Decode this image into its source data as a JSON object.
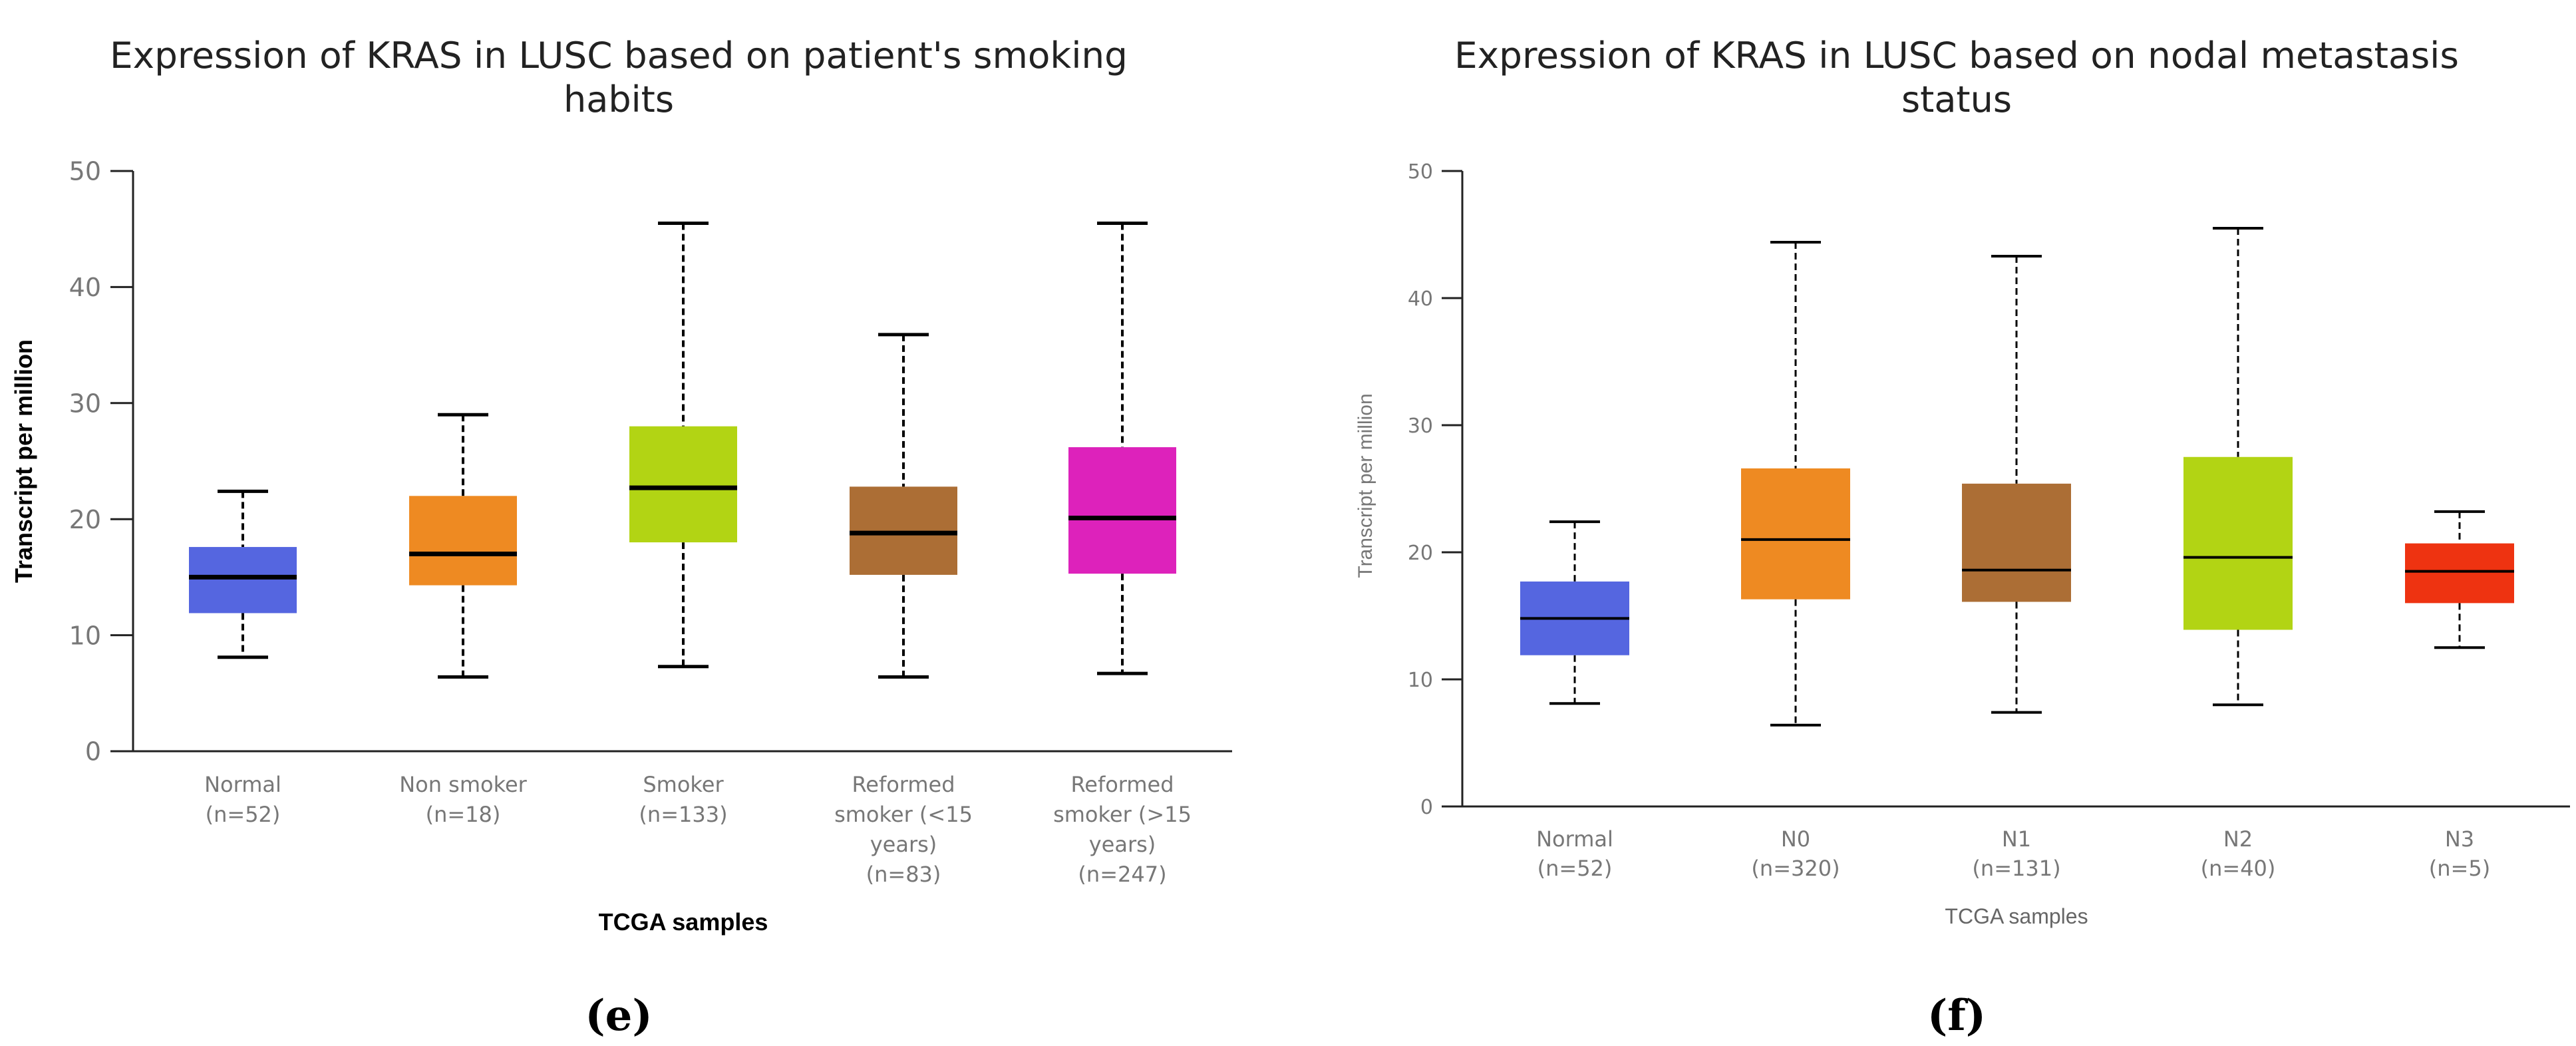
{
  "chart_data": [
    {
      "type": "box",
      "panel_label": "(e)",
      "title": [
        "Expression of KRAS in LUSC based on patient's smoking",
        "habits"
      ],
      "xlabel": "TCGA samples",
      "ylabel": "Transcript per million",
      "ylim": [
        0,
        50
      ],
      "yticks": [
        0,
        10,
        20,
        30,
        40,
        50
      ],
      "categories": [
        {
          "label": [
            "Normal",
            "(n=52)"
          ],
          "color": "#5566e0",
          "min": 8.1,
          "q1": 11.9,
          "median": 15.0,
          "q3": 17.6,
          "max": 22.4
        },
        {
          "label": [
            "Non smoker",
            "(n=18)"
          ],
          "color": "#ee8a22",
          "min": 6.4,
          "q1": 14.3,
          "median": 17.0,
          "q3": 22.0,
          "max": 29.0
        },
        {
          "label": [
            "Smoker",
            "(n=133)"
          ],
          "color": "#b2d414",
          "min": 7.3,
          "q1": 18.0,
          "median": 22.7,
          "q3": 28.0,
          "max": 45.5
        },
        {
          "label": [
            "Reformed",
            "smoker (<15",
            "years)",
            "(n=83)"
          ],
          "color": "#ac6e35",
          "min": 6.4,
          "q1": 15.2,
          "median": 18.8,
          "q3": 22.8,
          "max": 35.9
        },
        {
          "label": [
            "Reformed",
            "smoker (>15",
            "years)",
            "(n=247)"
          ],
          "color": "#dd22bb",
          "min": 6.7,
          "q1": 15.3,
          "median": 20.1,
          "q3": 26.2,
          "max": 45.5
        }
      ]
    },
    {
      "type": "box",
      "panel_label": "(f)",
      "title": [
        "Expression of KRAS in LUSC based on nodal metastasis",
        "status"
      ],
      "xlabel": "TCGA samples",
      "ylabel": "Transcript per million",
      "ylim": [
        0,
        50
      ],
      "yticks": [
        0,
        10,
        20,
        30,
        40,
        50
      ],
      "categories": [
        {
          "label": [
            "Normal",
            "(n=52)"
          ],
          "color": "#5566e0",
          "min": 8.1,
          "q1": 11.9,
          "median": 14.8,
          "q3": 17.7,
          "max": 22.4
        },
        {
          "label": [
            "N0",
            "(n=320)"
          ],
          "color": "#ee8a22",
          "min": 6.4,
          "q1": 16.3,
          "median": 21.0,
          "q3": 26.6,
          "max": 44.4
        },
        {
          "label": [
            "N1",
            "(n=131)"
          ],
          "color": "#ac6e35",
          "min": 7.4,
          "q1": 16.1,
          "median": 18.6,
          "q3": 25.4,
          "max": 43.3
        },
        {
          "label": [
            "N2",
            "(n=40)"
          ],
          "color": "#b2d414",
          "min": 8.0,
          "q1": 13.9,
          "median": 19.6,
          "q3": 27.5,
          "max": 45.5
        },
        {
          "label": [
            "N3",
            "(n=5)"
          ],
          "color": "#ee3311",
          "min": 12.5,
          "q1": 16.0,
          "median": 18.5,
          "q3": 20.7,
          "max": 23.2
        }
      ]
    }
  ]
}
